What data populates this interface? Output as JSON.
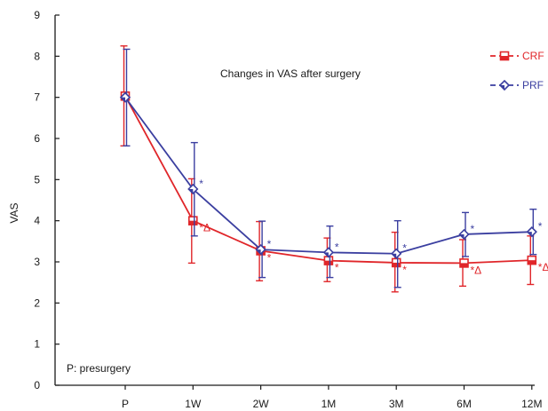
{
  "chart_data": {
    "type": "line",
    "title": "Changes in VAS after surgery",
    "xlabel": "",
    "ylabel": "VAS",
    "categories": [
      "P",
      "1W",
      "2W",
      "1M",
      "3M",
      "6M",
      "12M"
    ],
    "ylim": [
      0,
      9
    ],
    "yticks": [
      "0",
      "1",
      "2",
      "3",
      "4",
      "5",
      "6",
      "7",
      "8",
      "9"
    ],
    "grid": false,
    "legend_position": "top-right",
    "note": "P: presurgery",
    "series": [
      {
        "name": "CRF",
        "color": "#e0262a",
        "marker": "square-open",
        "values": [
          7.03,
          4.0,
          3.27,
          3.03,
          2.98,
          2.97,
          3.04
        ],
        "error_low": [
          5.82,
          2.97,
          2.54,
          2.52,
          2.27,
          2.41,
          2.45
        ],
        "error_high": [
          8.25,
          5.02,
          3.98,
          3.58,
          3.72,
          3.54,
          3.63
        ],
        "annotations": [
          "",
          "*Δ",
          "*",
          "*",
          "*",
          "*Δ",
          "*Δ"
        ]
      },
      {
        "name": "PRF",
        "color": "#3b3fa0",
        "marker": "diamond-open",
        "values": [
          7.0,
          4.77,
          3.3,
          3.23,
          3.2,
          3.67,
          3.73
        ],
        "error_low": [
          5.82,
          3.63,
          2.62,
          2.62,
          2.38,
          3.13,
          3.18
        ],
        "error_high": [
          8.17,
          5.9,
          3.99,
          3.87,
          4.0,
          4.2,
          4.28
        ],
        "annotations": [
          "",
          "*",
          "*",
          "*",
          "*",
          "*",
          "*"
        ]
      }
    ]
  }
}
